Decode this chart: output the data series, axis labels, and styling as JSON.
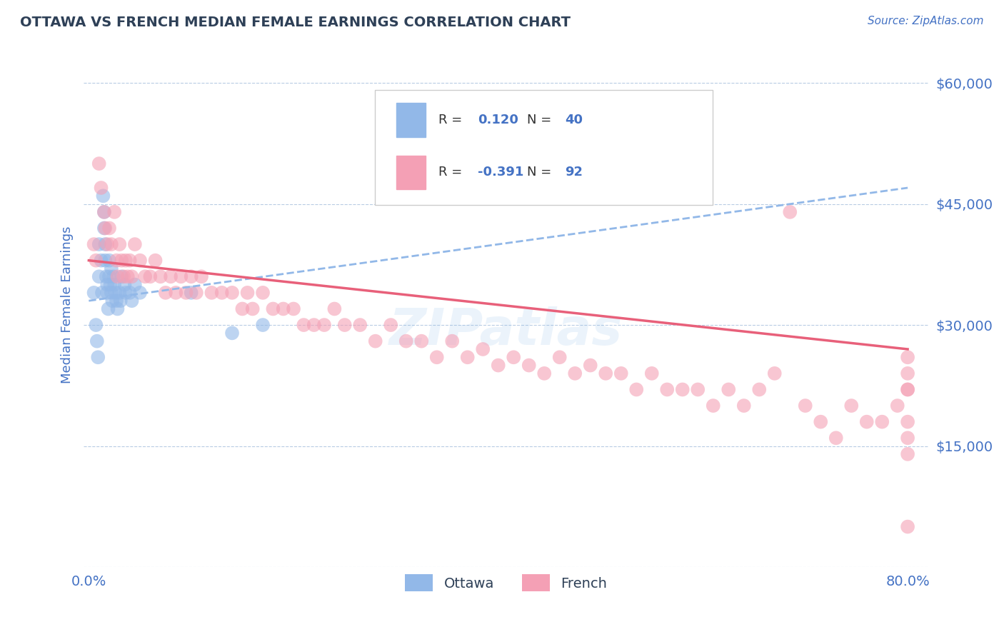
{
  "title": "OTTAWA VS FRENCH MEDIAN FEMALE EARNINGS CORRELATION CHART",
  "source_text": "Source: ZipAtlas.com",
  "ylabel": "Median Female Earnings",
  "xlim": [
    -0.005,
    0.82
  ],
  "ylim": [
    0,
    65000
  ],
  "yticks": [
    0,
    15000,
    30000,
    45000,
    60000
  ],
  "ytick_labels": [
    "",
    "$15,000",
    "$30,000",
    "$45,000",
    "$60,000"
  ],
  "xtick_positions": [
    0.0,
    0.8
  ],
  "xtick_labels": [
    "0.0%",
    "80.0%"
  ],
  "title_color": "#2e4057",
  "axis_color": "#4472c4",
  "grid_color": "#b8cce4",
  "ottawa_color": "#92b8e8",
  "french_color": "#f4a0b5",
  "trendline_ottawa_color": "#92b8e8",
  "trendline_french_color": "#e8607a",
  "legend_R_ottawa": "0.120",
  "legend_N_ottawa": "40",
  "legend_R_french": "-0.391",
  "legend_N_french": "92",
  "watermark": "ZIPatlas",
  "ottawa_x": [
    0.005,
    0.007,
    0.008,
    0.009,
    0.01,
    0.01,
    0.012,
    0.013,
    0.014,
    0.015,
    0.015,
    0.016,
    0.016,
    0.017,
    0.018,
    0.018,
    0.019,
    0.02,
    0.02,
    0.021,
    0.022,
    0.022,
    0.023,
    0.024,
    0.025,
    0.026,
    0.027,
    0.028,
    0.03,
    0.031,
    0.032,
    0.035,
    0.036,
    0.04,
    0.042,
    0.045,
    0.05,
    0.1,
    0.14,
    0.17
  ],
  "ottawa_y": [
    34000,
    30000,
    28000,
    26000,
    40000,
    36000,
    38000,
    34000,
    46000,
    44000,
    42000,
    40000,
    38000,
    36000,
    35000,
    34000,
    32000,
    38000,
    36000,
    35000,
    37000,
    34000,
    33000,
    36000,
    35000,
    34000,
    33000,
    32000,
    34000,
    33000,
    36000,
    35000,
    34000,
    34000,
    33000,
    35000,
    34000,
    34000,
    29000,
    30000
  ],
  "french_x": [
    0.005,
    0.007,
    0.01,
    0.012,
    0.015,
    0.016,
    0.018,
    0.02,
    0.022,
    0.025,
    0.027,
    0.028,
    0.03,
    0.032,
    0.034,
    0.036,
    0.038,
    0.04,
    0.042,
    0.045,
    0.05,
    0.055,
    0.06,
    0.065,
    0.07,
    0.075,
    0.08,
    0.085,
    0.09,
    0.095,
    0.1,
    0.105,
    0.11,
    0.12,
    0.13,
    0.14,
    0.15,
    0.155,
    0.16,
    0.17,
    0.18,
    0.19,
    0.2,
    0.21,
    0.22,
    0.23,
    0.24,
    0.25,
    0.265,
    0.28,
    0.295,
    0.31,
    0.325,
    0.34,
    0.355,
    0.37,
    0.385,
    0.4,
    0.415,
    0.43,
    0.445,
    0.46,
    0.475,
    0.49,
    0.505,
    0.52,
    0.535,
    0.55,
    0.565,
    0.58,
    0.595,
    0.61,
    0.625,
    0.64,
    0.655,
    0.67,
    0.685,
    0.7,
    0.715,
    0.73,
    0.745,
    0.76,
    0.775,
    0.79,
    0.8,
    0.8,
    0.8,
    0.8,
    0.8,
    0.8,
    0.8,
    0.8
  ],
  "french_y": [
    40000,
    38000,
    50000,
    47000,
    44000,
    42000,
    40000,
    42000,
    40000,
    44000,
    38000,
    36000,
    40000,
    38000,
    36000,
    38000,
    36000,
    38000,
    36000,
    40000,
    38000,
    36000,
    36000,
    38000,
    36000,
    34000,
    36000,
    34000,
    36000,
    34000,
    36000,
    34000,
    36000,
    34000,
    34000,
    34000,
    32000,
    34000,
    32000,
    34000,
    32000,
    32000,
    32000,
    30000,
    30000,
    30000,
    32000,
    30000,
    30000,
    28000,
    30000,
    28000,
    28000,
    26000,
    28000,
    26000,
    27000,
    25000,
    26000,
    25000,
    24000,
    26000,
    24000,
    25000,
    24000,
    24000,
    22000,
    24000,
    22000,
    22000,
    22000,
    20000,
    22000,
    20000,
    22000,
    24000,
    44000,
    20000,
    18000,
    16000,
    20000,
    18000,
    18000,
    20000,
    5000,
    22000,
    26000,
    24000,
    22000,
    18000,
    16000,
    14000
  ]
}
